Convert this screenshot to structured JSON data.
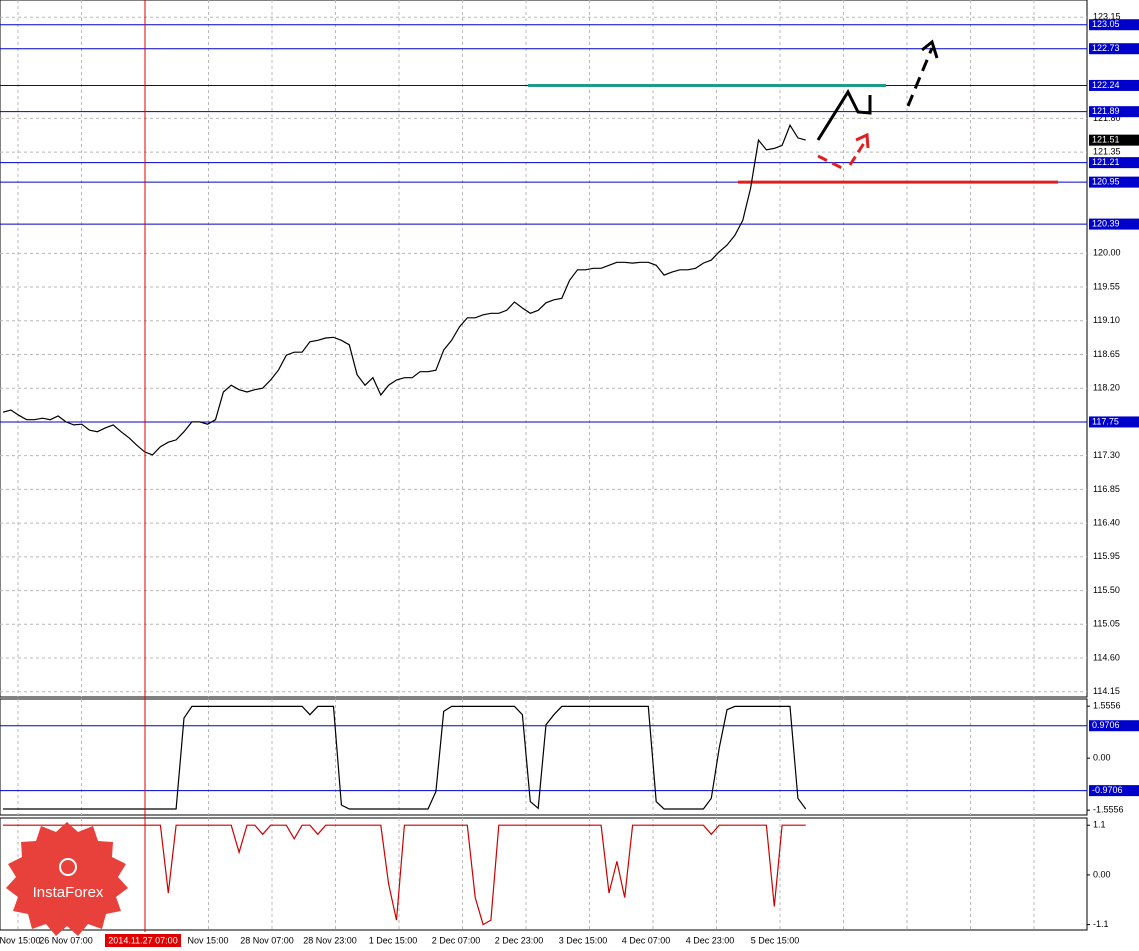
{
  "chart_data": [
    {
      "type": "line",
      "color": "#000000",
      "values": [
        117.88,
        117.91,
        117.84,
        117.78,
        117.78,
        117.8,
        117.78,
        117.83,
        117.75,
        117.71,
        117.72,
        117.64,
        117.62,
        117.67,
        117.71,
        117.62,
        117.54,
        117.44,
        117.35,
        117.31,
        117.42,
        117.48,
        117.51,
        117.62,
        117.75,
        117.75,
        117.72,
        117.78,
        118.15,
        118.24,
        118.18,
        118.15,
        118.18,
        118.2,
        118.31,
        118.44,
        118.64,
        118.68,
        118.68,
        118.82,
        118.84,
        118.87,
        118.88,
        118.84,
        118.78,
        118.38,
        118.24,
        118.34,
        118.11,
        118.24,
        118.31,
        118.34,
        118.34,
        118.42,
        118.42,
        118.44,
        118.71,
        118.84,
        119.02,
        119.14,
        119.14,
        119.18,
        119.2,
        119.2,
        119.24,
        119.35,
        119.27,
        119.2,
        119.24,
        119.34,
        119.38,
        119.4,
        119.64,
        119.78,
        119.78,
        119.8,
        119.8,
        119.84,
        119.88,
        119.88,
        119.87,
        119.88,
        119.88,
        119.84,
        119.71,
        119.75,
        119.78,
        119.78,
        119.8,
        119.87,
        119.91,
        120.02,
        120.11,
        120.24,
        120.44,
        120.87,
        121.51,
        121.38,
        121.4,
        121.44,
        121.71,
        121.54,
        121.51
      ],
      "ylim": [
        114.08,
        123.38
      ],
      "yticks": [
        123.15,
        {
          "value": 121.8,
          "label": "121.80"
        },
        121.35,
        {
          "value": 120,
          "label": "120.00"
        },
        119.55,
        {
          "value": 119.1,
          "label": "119.10"
        },
        118.65,
        {
          "value": 118.2,
          "label": "118.20"
        },
        {
          "value": 117.3,
          "label": "117.30"
        },
        116.85,
        {
          "value": 116.4,
          "label": "116.40"
        },
        115.95,
        {
          "value": 115.5,
          "label": "115.50"
        },
        115.05,
        {
          "value": 114.6,
          "label": "114.60"
        },
        114.15
      ],
      "levels": [
        123.05,
        122.73,
        122.24,
        121.89,
        121.21,
        120.95,
        120.39,
        117.75
      ],
      "level_color": "#0000cd",
      "current_price": 121.51,
      "trend_lines": [
        {
          "value": 122.24,
          "color": "#1f9a86"
        },
        {
          "value": 120.95,
          "color": "#e02020"
        }
      ],
      "grid": true
    },
    {
      "type": "line",
      "color": "#000000",
      "values": [
        -1.52,
        -1.52,
        -1.52,
        -1.52,
        -1.52,
        -1.52,
        -1.52,
        -1.52,
        -1.52,
        -1.52,
        -1.52,
        -1.52,
        -1.52,
        -1.52,
        -1.52,
        -1.52,
        -1.52,
        -1.52,
        -1.52,
        -1.52,
        -1.52,
        -1.52,
        -1.52,
        1.2,
        1.55,
        1.55,
        1.55,
        1.55,
        1.55,
        1.55,
        1.55,
        1.55,
        1.55,
        1.55,
        1.55,
        1.55,
        1.55,
        1.55,
        1.55,
        1.3,
        1.55,
        1.55,
        1.55,
        -1.4,
        -1.52,
        -1.52,
        -1.52,
        -1.52,
        -1.52,
        -1.52,
        -1.52,
        -1.52,
        -1.52,
        -1.52,
        -1.52,
        -1.0,
        1.4,
        1.55,
        1.55,
        1.55,
        1.55,
        1.55,
        1.55,
        1.55,
        1.55,
        1.55,
        1.3,
        -1.3,
        -1.5,
        1.0,
        1.3,
        1.55,
        1.55,
        1.55,
        1.55,
        1.55,
        1.55,
        1.55,
        1.55,
        1.55,
        1.55,
        1.55,
        1.55,
        -1.3,
        -1.52,
        -1.52,
        -1.52,
        -1.52,
        -1.52,
        -1.52,
        -1.2,
        0.3,
        1.45,
        1.55,
        1.55,
        1.55,
        1.55,
        1.55,
        1.55,
        1.55,
        1.55,
        -1.2,
        -1.52
      ],
      "ylim": [
        -1.7,
        1.77
      ],
      "yticks": [
        1.5556,
        {
          "value": 0,
          "label": "0.00"
        },
        -1.5556
      ],
      "levels": [
        0.9706,
        -0.9706
      ],
      "level_color": "#0000cd",
      "grid": true
    },
    {
      "type": "line",
      "color": "#cc0000",
      "values": [
        1.1,
        1.1,
        1.1,
        1.1,
        1.1,
        1.1,
        1.1,
        1.1,
        1.1,
        1.1,
        1.1,
        1.1,
        1.1,
        1.1,
        1.1,
        1.1,
        1.1,
        1.1,
        1.1,
        1.1,
        1.1,
        -0.4,
        1.1,
        1.1,
        1.1,
        1.1,
        1.1,
        1.1,
        1.1,
        1.1,
        0.5,
        1.1,
        1.1,
        0.9,
        1.1,
        1.1,
        1.1,
        0.8,
        1.1,
        1.1,
        0.9,
        1.1,
        1.1,
        1.1,
        1.1,
        1.1,
        1.1,
        1.1,
        1.1,
        -0.2,
        -1.0,
        1.1,
        1.1,
        1.1,
        1.1,
        1.1,
        1.1,
        1.1,
        1.1,
        1.1,
        -0.5,
        -1.1,
        -1.0,
        1.1,
        1.1,
        1.1,
        1.1,
        1.1,
        1.1,
        1.1,
        1.1,
        1.1,
        1.1,
        1.1,
        1.1,
        1.1,
        1.1,
        -0.4,
        0.3,
        -0.5,
        1.1,
        1.1,
        1.1,
        1.1,
        1.1,
        1.1,
        1.1,
        1.1,
        1.1,
        1.1,
        0.9,
        1.1,
        1.1,
        1.1,
        1.1,
        1.1,
        1.1,
        1.1,
        -0.7,
        1.1,
        1.1,
        1.1,
        1.1
      ],
      "ylim": [
        -1.22,
        1.26
      ],
      "yticks": [
        1.1,
        {
          "value": 0,
          "label": "0.00"
        },
        -1.1
      ],
      "grid": true
    }
  ],
  "time_axis": {
    "labels": [
      "Nov 15:00",
      "26 Nov 07:00",
      "2014.11.27 07:00",
      "Nov 15:00",
      "28 Nov 07:00",
      "28 Nov 23:00",
      "1 Dec 15:00",
      "2 Dec 07:00",
      "2 Dec 23:00",
      "3 Dec 15:00",
      "4 Dec 07:00",
      "4 Dec 23:00",
      "5 Dec 15:00"
    ]
  },
  "logo": "InstaForex"
}
